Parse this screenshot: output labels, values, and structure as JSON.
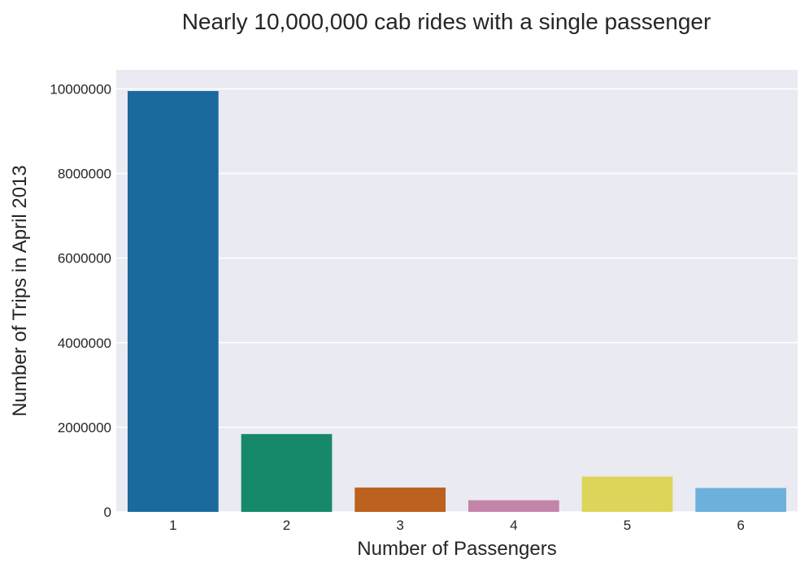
{
  "chart_data": {
    "type": "bar",
    "title": "Nearly 10,000,000 cab rides with a single passenger",
    "xlabel": "Number of Passengers",
    "ylabel": "Number of Trips in April 2013",
    "categories": [
      "1",
      "2",
      "3",
      "4",
      "5",
      "6"
    ],
    "values": [
      9950000,
      1840000,
      575000,
      275000,
      835000,
      565000
    ],
    "colors": [
      "#1a6a9e",
      "#16896a",
      "#bc611e",
      "#c484aa",
      "#ddd45a",
      "#6cb0db"
    ],
    "ylim": [
      0,
      10450000
    ],
    "yticks": [
      0,
      2000000,
      4000000,
      6000000,
      8000000,
      10000000
    ],
    "ytick_labels": [
      "0",
      "2000000",
      "4000000",
      "6000000",
      "8000000",
      "10000000"
    ],
    "grid": true,
    "background": "#eaeaf2"
  }
}
